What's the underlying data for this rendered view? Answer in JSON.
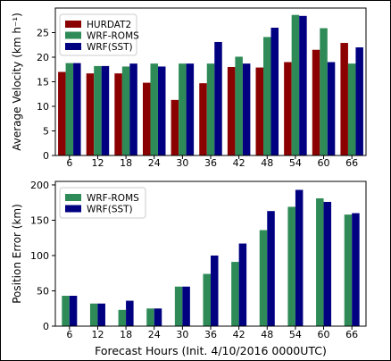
{
  "chart_data": [
    {
      "type": "bar",
      "title": "",
      "xlabel": "",
      "ylabel": "Average Velocity (km h⁻¹)",
      "categories": [
        "6",
        "12",
        "18",
        "24",
        "30",
        "36",
        "42",
        "48",
        "54",
        "60",
        "66"
      ],
      "ylim": [
        0,
        30
      ],
      "yticks": [
        "0",
        "5",
        "10",
        "15",
        "20",
        "25"
      ],
      "grid": false,
      "legend_position": "top-left",
      "series": [
        {
          "name": "HURDAT2",
          "color": "#8b0000",
          "values": [
            17.0,
            16.7,
            16.7,
            14.8,
            11.3,
            14.7,
            18.0,
            17.9,
            19.0,
            21.5,
            22.9
          ]
        },
        {
          "name": "WRF-ROMS",
          "color": "#2e8b57",
          "values": [
            18.8,
            18.2,
            18.1,
            18.7,
            18.7,
            18.7,
            20.1,
            24.1,
            28.6,
            25.9,
            18.7
          ]
        },
        {
          "name": "WRF(SST)",
          "color": "#000080",
          "values": [
            18.8,
            18.2,
            18.7,
            18.1,
            18.7,
            23.1,
            18.7,
            26.0,
            28.4,
            19.0,
            22.0
          ]
        }
      ]
    },
    {
      "type": "bar",
      "title": "",
      "xlabel": "Forecast Hours (Init. 4/10/2016 0000UTC)",
      "ylabel": "Position Error (km)",
      "categories": [
        "6",
        "12",
        "18",
        "24",
        "30",
        "36",
        "42",
        "48",
        "54",
        "60",
        "66"
      ],
      "ylim": [
        0,
        205
      ],
      "yticks": [
        "0",
        "50",
        "100",
        "150",
        "200"
      ],
      "grid": false,
      "legend_position": "top-left",
      "series": [
        {
          "name": "WRF-ROMS",
          "color": "#2e8b57",
          "values": [
            43,
            32,
            23,
            25,
            56,
            74,
            91,
            136,
            169,
            181,
            158
          ]
        },
        {
          "name": "WRF(SST)",
          "color": "#000080",
          "values": [
            43,
            32,
            36,
            25,
            56,
            100,
            117,
            163,
            193,
            176,
            160
          ]
        }
      ]
    }
  ]
}
